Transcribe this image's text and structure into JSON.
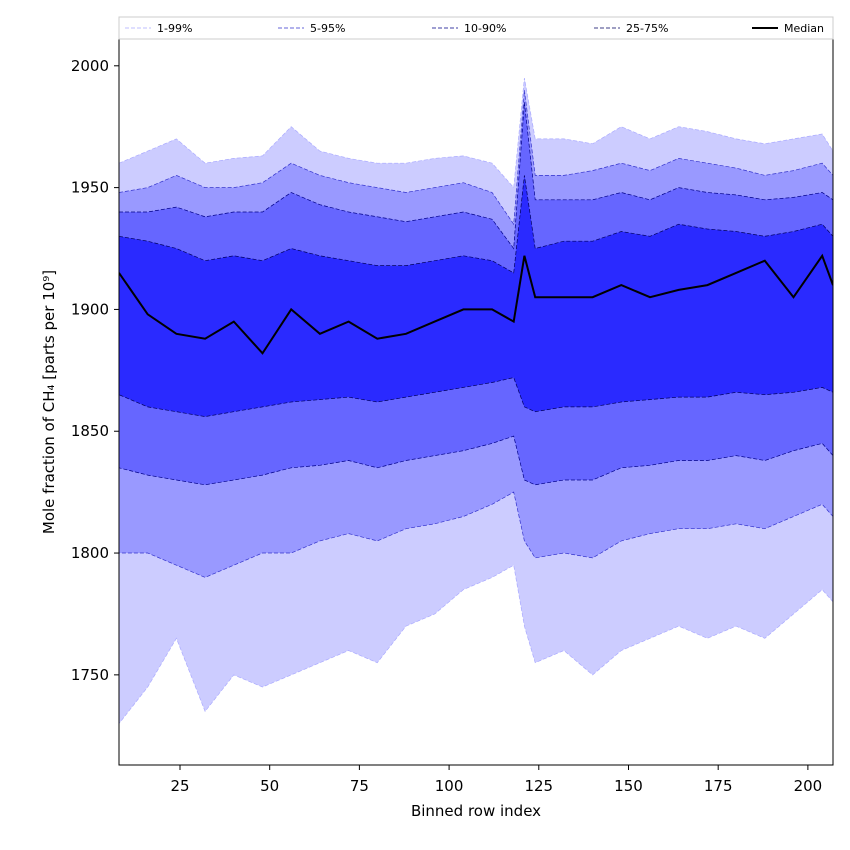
{
  "chart_data": {
    "type": "area",
    "title": "",
    "xlabel": "Binned row index",
    "ylabel": "Mole fraction of CH₄ [parts per 10⁹]",
    "xlim": [
      8,
      207
    ],
    "ylim": [
      1713,
      2011
    ],
    "x_ticks": [
      25,
      50,
      75,
      100,
      125,
      150,
      175,
      200
    ],
    "y_ticks": [
      1750,
      1800,
      1850,
      1900,
      1950,
      2000
    ],
    "grid": false,
    "legend_position": "top (spanning full width)",
    "x": [
      8,
      16,
      24,
      32,
      40,
      48,
      56,
      64,
      72,
      80,
      88,
      96,
      104,
      112,
      118,
      121,
      124,
      132,
      140,
      148,
      156,
      164,
      172,
      180,
      188,
      196,
      204,
      207
    ],
    "bands": [
      {
        "name": "1-99%",
        "color": "#ccccff",
        "edge": "#aaaaff",
        "lower": [
          1730,
          1745,
          1765,
          1735,
          1750,
          1745,
          1750,
          1755,
          1760,
          1755,
          1770,
          1775,
          1785,
          1790,
          1795,
          1770,
          1755,
          1760,
          1750,
          1760,
          1765,
          1770,
          1765,
          1770,
          1765,
          1775,
          1785,
          1780
        ],
        "upper": [
          1960,
          1965,
          1970,
          1960,
          1962,
          1963,
          1975,
          1965,
          1962,
          1960,
          1960,
          1962,
          1963,
          1960,
          1950,
          1995,
          1970,
          1970,
          1968,
          1975,
          1970,
          1975,
          1973,
          1970,
          1968,
          1970,
          1972,
          1965
        ]
      },
      {
        "name": "5-95%",
        "color": "#9999ff",
        "edge": "#3333cc",
        "lower": [
          1800,
          1800,
          1795,
          1790,
          1795,
          1800,
          1800,
          1805,
          1808,
          1805,
          1810,
          1812,
          1815,
          1820,
          1825,
          1805,
          1798,
          1800,
          1798,
          1805,
          1808,
          1810,
          1810,
          1812,
          1810,
          1815,
          1820,
          1815
        ],
        "upper": [
          1948,
          1950,
          1955,
          1950,
          1950,
          1952,
          1960,
          1955,
          1952,
          1950,
          1948,
          1950,
          1952,
          1948,
          1935,
          1990,
          1955,
          1955,
          1957,
          1960,
          1957,
          1962,
          1960,
          1958,
          1955,
          1957,
          1960,
          1955
        ]
      },
      {
        "name": "10-90%",
        "color": "#6666ff",
        "edge": "#000088",
        "lower": [
          1835,
          1832,
          1830,
          1828,
          1830,
          1832,
          1835,
          1836,
          1838,
          1835,
          1838,
          1840,
          1842,
          1845,
          1848,
          1830,
          1828,
          1830,
          1830,
          1835,
          1836,
          1838,
          1838,
          1840,
          1838,
          1842,
          1845,
          1840
        ],
        "upper": [
          1940,
          1940,
          1942,
          1938,
          1940,
          1940,
          1948,
          1943,
          1940,
          1938,
          1936,
          1938,
          1940,
          1937,
          1925,
          1985,
          1945,
          1945,
          1945,
          1948,
          1945,
          1950,
          1948,
          1947,
          1945,
          1946,
          1948,
          1945
        ]
      },
      {
        "name": "25-75%",
        "color": "#2a2aff",
        "edge": "#000060",
        "lower": [
          1865,
          1860,
          1858,
          1856,
          1858,
          1860,
          1862,
          1863,
          1864,
          1862,
          1864,
          1866,
          1868,
          1870,
          1872,
          1860,
          1858,
          1860,
          1860,
          1862,
          1863,
          1864,
          1864,
          1866,
          1865,
          1866,
          1868,
          1866
        ],
        "upper": [
          1930,
          1928,
          1925,
          1920,
          1922,
          1920,
          1925,
          1922,
          1920,
          1918,
          1918,
          1920,
          1922,
          1920,
          1915,
          1955,
          1925,
          1928,
          1928,
          1932,
          1930,
          1935,
          1933,
          1932,
          1930,
          1932,
          1935,
          1930
        ]
      }
    ],
    "series": [
      {
        "name": "Median",
        "color": "#000000",
        "values": [
          1915,
          1898,
          1890,
          1888,
          1895,
          1882,
          1900,
          1890,
          1895,
          1888,
          1890,
          1895,
          1900,
          1900,
          1895,
          1922,
          1905,
          1905,
          1905,
          1910,
          1905,
          1908,
          1910,
          1915,
          1920,
          1905,
          1922,
          1910
        ]
      }
    ],
    "legend": [
      "1-99%",
      "5-95%",
      "10-90%",
      "25-75%",
      "Median"
    ]
  }
}
